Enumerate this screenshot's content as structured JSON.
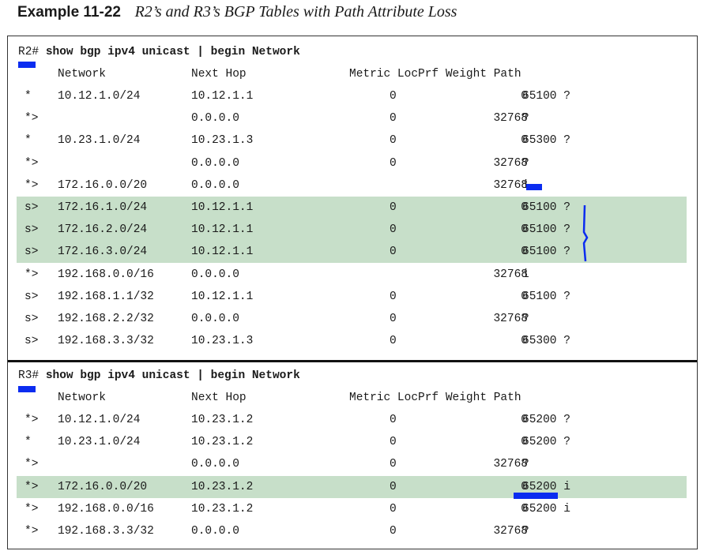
{
  "example": {
    "label": "Example 11-22",
    "caption": "R2’s and R3’s BGP Tables with Path Attribute Loss"
  },
  "headers": {
    "network": "Network",
    "next_hop": "Next Hop",
    "metric_cols": "Metric LocPrf Weight Path"
  },
  "r2": {
    "prompt": "R2#",
    "command": "show bgp ipv4 unicast | begin Network",
    "rows": [
      {
        "status": "*",
        "network": "10.12.1.0/24",
        "next_hop": "10.12.1.1",
        "metric": "0",
        "weight": "0",
        "path": "65100 ?",
        "highlight": false
      },
      {
        "status": "*>",
        "network": "",
        "next_hop": "0.0.0.0",
        "metric": "0",
        "weight": "32768",
        "path": "?",
        "highlight": false
      },
      {
        "status": "*",
        "network": "10.23.1.0/24",
        "next_hop": "10.23.1.3",
        "metric": "0",
        "weight": "0",
        "path": "65300 ?",
        "highlight": false
      },
      {
        "status": "*>",
        "network": "",
        "next_hop": "0.0.0.0",
        "metric": "0",
        "weight": "32768",
        "path": "?",
        "highlight": false
      },
      {
        "status": "*>",
        "network": "172.16.0.0/20",
        "next_hop": "0.0.0.0",
        "metric": "",
        "weight": "32768",
        "path": "i",
        "highlight": false
      },
      {
        "status": "s>",
        "network": "172.16.1.0/24",
        "next_hop": "10.12.1.1",
        "metric": "0",
        "weight": "0",
        "path": "65100 ?",
        "highlight": true
      },
      {
        "status": "s>",
        "network": "172.16.2.0/24",
        "next_hop": "10.12.1.1",
        "metric": "0",
        "weight": "0",
        "path": "65100 ?",
        "highlight": true
      },
      {
        "status": "s>",
        "network": "172.16.3.0/24",
        "next_hop": "10.12.1.1",
        "metric": "0",
        "weight": "0",
        "path": "65100 ?",
        "highlight": true
      },
      {
        "status": "*>",
        "network": "192.168.0.0/16",
        "next_hop": "0.0.0.0",
        "metric": "",
        "weight": "32768",
        "path": "i",
        "highlight": false
      },
      {
        "status": "s>",
        "network": "192.168.1.1/32",
        "next_hop": "10.12.1.1",
        "metric": "0",
        "weight": "0",
        "path": "65100 ?",
        "highlight": false
      },
      {
        "status": "s>",
        "network": "192.168.2.2/32",
        "next_hop": "0.0.0.0",
        "metric": "0",
        "weight": "32768",
        "path": "?",
        "highlight": false
      },
      {
        "status": "s>",
        "network": "192.168.3.3/32",
        "next_hop": "10.23.1.3",
        "metric": "0",
        "weight": "0",
        "path": "65300 ?",
        "highlight": false
      }
    ]
  },
  "r3": {
    "prompt": "R3#",
    "command": "show bgp ipv4 unicast | begin Network",
    "rows": [
      {
        "status": "*>",
        "network": "10.12.1.0/24",
        "next_hop": "10.23.1.2",
        "metric": "0",
        "weight": "0",
        "path": "65200 ?",
        "highlight": false
      },
      {
        "status": "*",
        "network": "10.23.1.0/24",
        "next_hop": "10.23.1.2",
        "metric": "0",
        "weight": "0",
        "path": "65200 ?",
        "highlight": false
      },
      {
        "status": "*>",
        "network": "",
        "next_hop": "0.0.0.0",
        "metric": "0",
        "weight": "32768",
        "path": "?",
        "highlight": false
      },
      {
        "status": "*>",
        "network": "172.16.0.0/20",
        "next_hop": "10.23.1.2",
        "metric": "0",
        "weight": "0",
        "path": "65200 i",
        "highlight": true
      },
      {
        "status": "*>",
        "network": "192.168.0.0/16",
        "next_hop": "10.23.1.2",
        "metric": "0",
        "weight": "0",
        "path": "65200 i",
        "highlight": false
      },
      {
        "status": "*>",
        "network": "192.168.3.3/32",
        "next_hop": "0.0.0.0",
        "metric": "0",
        "weight": "32768",
        "path": "?",
        "highlight": false
      }
    ]
  },
  "colors": {
    "highlight": "#c7dfc9",
    "annotation_ink": "#0b2cf0"
  }
}
